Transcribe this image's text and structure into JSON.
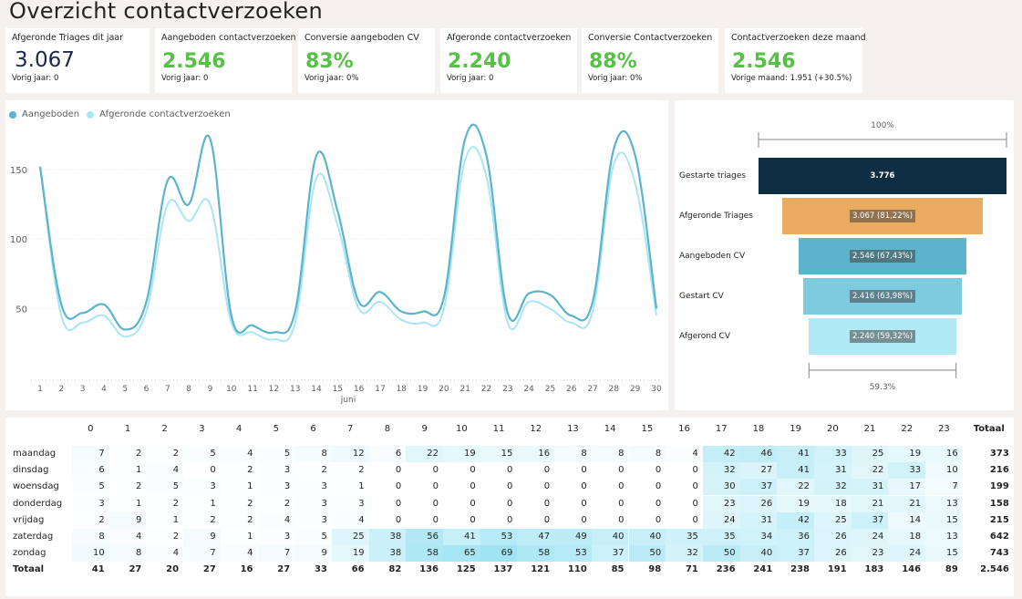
{
  "page_title": "Overzicht contactverzoeken",
  "kpis": [
    {
      "label": "Afgeronde Triages dit jaar",
      "value": "3.067",
      "sub": "Vorig jaar: 0",
      "style": "dark"
    },
    {
      "label": "Aangeboden contactverzoeken",
      "value": "2.546",
      "sub": "Vorig jaar: 0",
      "style": "green"
    },
    {
      "label": "Conversie aangeboden CV",
      "value": "83%",
      "sub": "Vorig jaar: 0%",
      "style": "green"
    },
    {
      "label": "Afgeronde contactverzoeken",
      "value": "2.240",
      "sub": "Vorig jaar: 0",
      "style": "green"
    },
    {
      "label": "Conversie Contactverzoeken",
      "value": "88%",
      "sub": "Vorig jaar: 0%",
      "style": "green"
    },
    {
      "label": "Contactverzoeken deze maand",
      "value": "2.546",
      "sub": "Vorige maand: 1.951 (+30.5%)",
      "style": "green"
    }
  ],
  "chart_data": [
    {
      "type": "line",
      "x": [
        1,
        2,
        3,
        4,
        5,
        6,
        7,
        8,
        9,
        10,
        11,
        12,
        13,
        14,
        15,
        16,
        17,
        18,
        19,
        20,
        21,
        22,
        23,
        24,
        25,
        26,
        27,
        28,
        29,
        30
      ],
      "xlabel": "juni",
      "ylim": [
        0,
        180
      ],
      "yticks": [
        50,
        100,
        150
      ],
      "legend": "top-left",
      "grid": true,
      "series": [
        {
          "name": "Aangeboden",
          "color": "#5bb3cc",
          "values": [
            152,
            53,
            47,
            53,
            35,
            55,
            142,
            125,
            172,
            45,
            38,
            33,
            48,
            160,
            120,
            55,
            62,
            48,
            48,
            58,
            172,
            160,
            47,
            61,
            60,
            45,
            55,
            165,
            160,
            50
          ]
        },
        {
          "name": "Afgeronde contactverzoeken",
          "color": "#a8e6f3",
          "values": [
            152,
            45,
            40,
            45,
            30,
            48,
            125,
            113,
            125,
            40,
            33,
            28,
            40,
            144,
            110,
            50,
            55,
            42,
            40,
            50,
            157,
            145,
            40,
            55,
            50,
            40,
            48,
            154,
            140,
            45
          ]
        }
      ]
    },
    {
      "type": "bar",
      "subtype": "funnel",
      "top_label": "100%",
      "bottom_label": "59.3%",
      "categories": [
        "Gestarte triages",
        "Afgeronde Triages",
        "Aangeboden CV",
        "Gestart CV",
        "Afgerond CV"
      ],
      "values": [
        3776,
        3067,
        2546,
        2416,
        2240
      ],
      "value_labels": [
        "3.776",
        "3.067 (81,22%)",
        "2.546 (67,43%)",
        "2.416 (63,98%)",
        "2.240 (59,32%)"
      ],
      "colors": [
        "#0d2d42",
        "#e8ab60",
        "#5bb3cc",
        "#7ecbe0",
        "#b2e9f6"
      ]
    },
    {
      "type": "table",
      "columns": [
        "0",
        "1",
        "2",
        "3",
        "4",
        "5",
        "6",
        "7",
        "8",
        "9",
        "10",
        "11",
        "12",
        "13",
        "14",
        "15",
        "16",
        "17",
        "18",
        "19",
        "20",
        "21",
        "22",
        "23"
      ],
      "total_header": "Totaal",
      "rows": [
        {
          "label": "maandag",
          "values": [
            7,
            2,
            2,
            5,
            4,
            5,
            8,
            12,
            6,
            22,
            19,
            15,
            16,
            8,
            8,
            8,
            4,
            42,
            46,
            41,
            33,
            25,
            19,
            16
          ],
          "total": "373"
        },
        {
          "label": "dinsdag",
          "values": [
            6,
            1,
            4,
            0,
            2,
            3,
            2,
            2,
            0,
            0,
            0,
            0,
            0,
            0,
            0,
            0,
            0,
            32,
            27,
            41,
            31,
            22,
            33,
            10
          ],
          "total": "216"
        },
        {
          "label": "woensdag",
          "values": [
            5,
            2,
            5,
            3,
            1,
            3,
            3,
            1,
            0,
            0,
            0,
            0,
            0,
            0,
            0,
            0,
            0,
            30,
            37,
            22,
            32,
            31,
            17,
            7
          ],
          "total": "199"
        },
        {
          "label": "donderdag",
          "values": [
            3,
            1,
            2,
            1,
            2,
            2,
            3,
            3,
            0,
            0,
            0,
            0,
            0,
            0,
            0,
            0,
            0,
            23,
            26,
            19,
            18,
            21,
            21,
            13
          ],
          "total": "158"
        },
        {
          "label": "vrijdag",
          "values": [
            2,
            9,
            1,
            2,
            2,
            4,
            3,
            4,
            0,
            0,
            0,
            0,
            0,
            0,
            0,
            0,
            0,
            24,
            31,
            42,
            25,
            37,
            14,
            15
          ],
          "total": "215"
        },
        {
          "label": "zaterdag",
          "values": [
            8,
            4,
            2,
            9,
            1,
            3,
            5,
            25,
            38,
            56,
            41,
            53,
            47,
            49,
            40,
            40,
            35,
            35,
            34,
            36,
            26,
            24,
            18,
            13
          ],
          "total": "642"
        },
        {
          "label": "zondag",
          "values": [
            10,
            8,
            4,
            7,
            4,
            7,
            9,
            19,
            38,
            58,
            65,
            69,
            58,
            53,
            37,
            50,
            32,
            50,
            40,
            37,
            26,
            23,
            24,
            15
          ],
          "total": "743"
        }
      ],
      "totals_row": {
        "label": "Totaal",
        "values": [
          41,
          27,
          20,
          27,
          16,
          27,
          33,
          66,
          82,
          136,
          125,
          137,
          121,
          110,
          85,
          98,
          71,
          236,
          241,
          238,
          191,
          183,
          146,
          89
        ],
        "total": "2.546"
      }
    }
  ]
}
